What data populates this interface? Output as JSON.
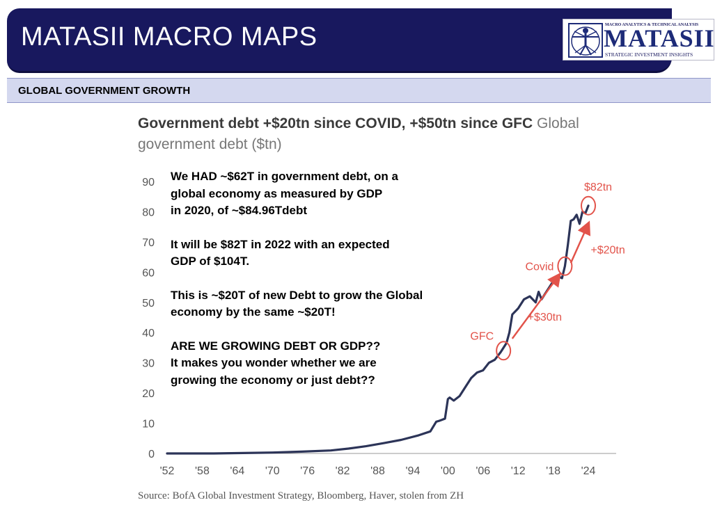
{
  "header": {
    "title": "MATASII MACRO MAPS",
    "logo": {
      "top_text": "MACRO ANALYTICS & TECHNICAL ANALYSIS",
      "wordmark": "MATASII",
      "bottom_text": "STRATEGIC INVESTMENT INSIGHTS"
    }
  },
  "section": {
    "title": "GLOBAL GOVERNMENT GROWTH"
  },
  "colors": {
    "banner": "#18185e",
    "series": "#2c3458",
    "annotation": "#e2534a",
    "section_bg": "#d4d8ef"
  },
  "chart_data": {
    "type": "line",
    "title_bold": "Government debt +$20tn since COVID, +$50tn since GFC",
    "title_light_1": "Global",
    "title_light_2": "government debt ($tn)",
    "ylabel": "Global government debt ($tn)",
    "xlabel": "",
    "ylim": [
      0,
      90
    ],
    "yticks": [
      0,
      10,
      20,
      30,
      40,
      50,
      60,
      70,
      80,
      90
    ],
    "xlim": [
      1952,
      2026
    ],
    "xticks": [
      {
        "year": 1952,
        "label": "'52"
      },
      {
        "year": 1958,
        "label": "'58"
      },
      {
        "year": 1964,
        "label": "'64"
      },
      {
        "year": 1970,
        "label": "'70"
      },
      {
        "year": 1976,
        "label": "'76"
      },
      {
        "year": 1982,
        "label": "'82"
      },
      {
        "year": 1988,
        "label": "'88"
      },
      {
        "year": 1994,
        "label": "'94"
      },
      {
        "year": 2000,
        "label": "'00"
      },
      {
        "year": 2006,
        "label": "'06"
      },
      {
        "year": 2012,
        "label": "'12"
      },
      {
        "year": 2018,
        "label": "'18"
      },
      {
        "year": 2024,
        "label": "'24"
      }
    ],
    "series": [
      {
        "name": "Global government debt",
        "x": [
          1952,
          1960,
          1970,
          1975,
          1980,
          1983,
          1986,
          1989,
          1992,
          1995,
          1997,
          1998,
          1998.5,
          1999.5,
          2000,
          2000.3,
          2001,
          2002,
          2003,
          2004,
          2005,
          2006,
          2007,
          2008,
          2009,
          2010,
          2010.5,
          2011,
          2012,
          2013,
          2014,
          2015,
          2015.5,
          2016,
          2017,
          2018,
          2019,
          2019.5,
          2020,
          2020.5,
          2021,
          2021.5,
          2022,
          2022.5,
          2023,
          2023.5,
          2024
        ],
        "values": [
          0,
          0,
          0.3,
          0.6,
          1,
          1.6,
          2.4,
          3.4,
          4.5,
          6,
          7.3,
          10.5,
          10.8,
          11.5,
          18,
          18.5,
          17.5,
          19,
          22,
          25,
          26.8,
          27.5,
          30,
          31,
          33.5,
          36.5,
          40,
          46,
          48,
          51,
          52,
          50,
          53.5,
          51,
          54,
          57,
          58.5,
          58,
          62,
          69,
          77,
          77.5,
          79,
          76,
          80,
          79.5,
          82
        ]
      }
    ],
    "annotations": [
      {
        "label": "GFC",
        "x": 2009.5,
        "y": 34
      },
      {
        "label": "Covid",
        "x": 2020,
        "y": 62
      },
      {
        "label": "$82tn",
        "x": 2024,
        "y": 82
      },
      {
        "label": "+$30tn",
        "from": [
          2011,
          38
        ],
        "to": [
          2019,
          59
        ]
      },
      {
        "label": "+$20tn",
        "from": [
          2021,
          63
        ],
        "to": [
          2024,
          76
        ]
      }
    ],
    "source": "Source: BofA Global Investment Strategy, Bloomberg, Haver, stolen from ZH"
  },
  "notes": {
    "p1": [
      "We HAD ~$62T in government debt, on a",
      "global economy as measured by GDP",
      "in 2020, of ~$84.96Tdebt"
    ],
    "p2": [
      "It  will be $82T in 2022 with an expected",
      "GDP of $104T."
    ],
    "p3": [
      "This is ~$20T of new Debt to grow the Global",
      "economy by the same ~$20T!"
    ],
    "p4": [
      "ARE WE GROWING DEBT OR GDP??",
      "It makes you wonder whether we are",
      "growing the economy or just debt??"
    ]
  }
}
